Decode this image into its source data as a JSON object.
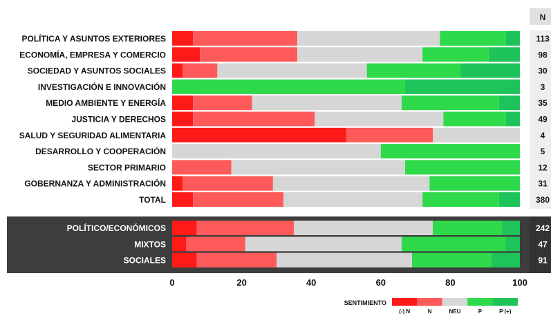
{
  "chart_data": {
    "type": "bar",
    "orientation": "horizontal",
    "stacked": true,
    "percent": true,
    "n_header": "N",
    "series": [
      {
        "name": "(-) N",
        "color": "#ff1a1a"
      },
      {
        "name": "N",
        "color": "#ff5a5a"
      },
      {
        "name": "NEU",
        "color": "#d6d6d6"
      },
      {
        "name": "P",
        "color": "#2ed94a"
      },
      {
        "name": "P (+)",
        "color": "#1ec45a"
      }
    ],
    "groups": [
      {
        "background": "light",
        "rows": [
          {
            "category": "POLÍTICA Y ASUNTOS EXTERIORES",
            "n": "113",
            "values": [
              6,
              30,
              41,
              19,
              4
            ]
          },
          {
            "category": "ECONOMÍA, EMPRESA Y COMERCIO",
            "n": "98",
            "values": [
              8,
              28,
              36,
              19,
              9
            ]
          },
          {
            "category": "SOCIEDAD Y ASUNTOS SOCIALES",
            "n": "30",
            "values": [
              3,
              10,
              43,
              27,
              17
            ]
          },
          {
            "category": "INVESTIGACIÓN E INNOVACIÓN",
            "n": "3",
            "values": [
              0,
              0,
              0,
              67,
              33
            ]
          },
          {
            "category": "MEDIO AMBIENTE Y ENERGÍA",
            "n": "35",
            "values": [
              6,
              17,
              43,
              28,
              6
            ]
          },
          {
            "category": "JUSTICIA Y DERECHOS",
            "n": "49",
            "values": [
              6,
              35,
              37,
              18,
              4
            ]
          },
          {
            "category": "SALUD Y SEGURIDAD ALIMENTARIA",
            "n": "4",
            "values": [
              50,
              25,
              25,
              0,
              0
            ]
          },
          {
            "category": "DESARROLLO Y COOPERACIÓN",
            "n": "5",
            "values": [
              0,
              0,
              60,
              40,
              0
            ]
          },
          {
            "category": "SECTOR PRIMARIO",
            "n": "12",
            "values": [
              0,
              17,
              50,
              33,
              0
            ]
          },
          {
            "category": "GOBERNANZA Y ADMINISTRACIÓN",
            "n": "31",
            "values": [
              3,
              26,
              45,
              26,
              0
            ]
          },
          {
            "category": "TOTAL",
            "n": "380",
            "values": [
              6,
              26,
              40,
              22,
              6
            ]
          }
        ]
      },
      {
        "background": "dark",
        "rows": [
          {
            "category": "POLÍTICO/ECONÓMICOS",
            "n": "242",
            "values": [
              7,
              28,
              40,
              20,
              5
            ]
          },
          {
            "category": "MIXTOS",
            "n": "47",
            "values": [
              4,
              17,
              45,
              30,
              4
            ]
          },
          {
            "category": "SOCIALES",
            "n": "91",
            "values": [
              7,
              23,
              39,
              23,
              8
            ]
          }
        ]
      }
    ],
    "x_ticks": [
      "0",
      "20",
      "40",
      "60",
      "80",
      "100"
    ],
    "xlim": [
      0,
      100
    ],
    "legend": {
      "title": "SENTIMIENTO",
      "position": "bottom-right"
    }
  }
}
